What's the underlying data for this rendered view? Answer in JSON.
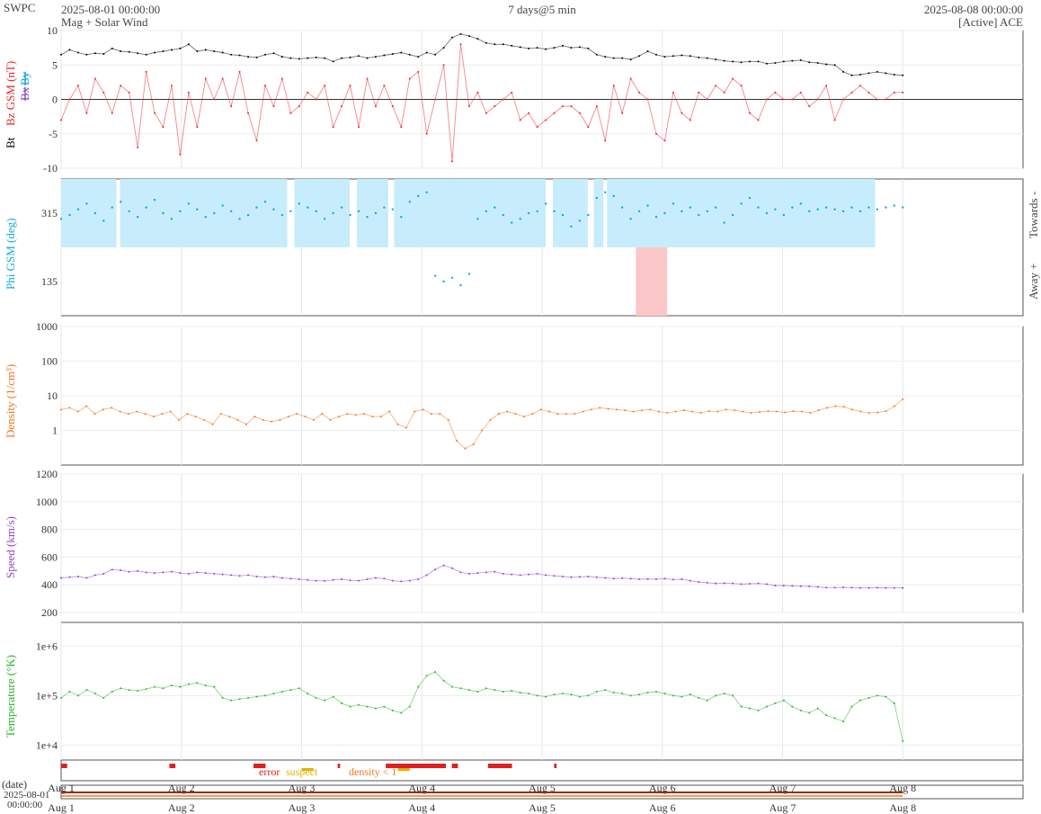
{
  "header": {
    "org": "SWPC",
    "start": "2025-08-01 00:00:00",
    "title": "Mag + Solar Wind",
    "span": "7 days@5 min",
    "end": "2025-08-08 00:00:00",
    "source": "[Active] ACE"
  },
  "colors": {
    "bt": "#000000",
    "bz": "#e8252a",
    "bx": "#7f3fbf",
    "by": "#00a0dc",
    "phi": "#0fa8df",
    "phi_toward_fill": "#c7ecfb",
    "phi_away_fill": "#fcc7c9",
    "density": "#f07820",
    "speed": "#9a3fcf",
    "temperature": "#2ab52a",
    "error": "#e02020",
    "suspect": "#e8b000",
    "density_lt1": "#f07820"
  },
  "chart_data": [
    {
      "id": "mag",
      "type": "line",
      "ylabels": {
        "bt": "Bt",
        "bz": "Bz GSM (nT)",
        "bx": "Bx",
        "by": "By"
      },
      "ylim": [
        -10,
        10
      ],
      "yticks": [
        "10",
        "5",
        "0",
        "-5",
        "-10"
      ],
      "grid": true,
      "series": [
        {
          "name": "Bt",
          "color_key": "bt",
          "values": [
            6.5,
            7.2,
            6.8,
            6.5,
            6.7,
            6.6,
            7.4,
            7.0,
            6.9,
            6.7,
            6.5,
            6.8,
            7.0,
            7.2,
            7.4,
            8.0,
            7.0,
            7.2,
            7.0,
            6.8,
            6.5,
            6.4,
            6.2,
            6.1,
            6.5,
            6.7,
            6.2,
            6.0,
            5.9,
            6.0,
            6.1,
            6.0,
            5.5,
            6.0,
            6.1,
            6.3,
            6.0,
            6.2,
            6.4,
            6.6,
            6.8,
            6.5,
            6.2,
            6.8,
            6.5,
            7.5,
            9.0,
            9.5,
            9.2,
            8.8,
            8.2,
            8.0,
            8.0,
            7.8,
            7.6,
            7.4,
            7.5,
            7.3,
            7.5,
            7.8,
            7.5,
            7.6,
            7.4,
            6.5,
            6.2,
            6.0,
            6.0,
            5.8,
            6.3,
            7.0,
            6.5,
            6.2,
            6.3,
            6.4,
            6.3,
            6.1,
            6.0,
            5.8,
            5.6,
            5.5,
            5.4,
            5.5,
            5.5,
            5.2,
            5.3,
            5.5,
            5.6,
            5.7,
            5.4,
            5.3,
            5.1,
            5.0,
            4.0,
            3.5,
            3.6,
            3.8,
            4.0,
            3.8,
            3.6,
            3.5
          ]
        },
        {
          "name": "Bz GSM",
          "color_key": "bz",
          "values": [
            -3,
            0,
            2,
            -2,
            3,
            1,
            -2,
            2,
            1,
            -7,
            4,
            -2,
            -4,
            2,
            -8,
            1,
            -4,
            3,
            0,
            3,
            -1,
            4,
            -2,
            -6,
            2,
            -1,
            3,
            -2,
            -1,
            1,
            0,
            2,
            -4,
            -1,
            2,
            -4,
            3,
            -1,
            2,
            -1,
            -4,
            3,
            4,
            -5,
            0,
            5,
            -9,
            8,
            -1,
            1,
            -2,
            -1,
            0,
            1,
            -3,
            -2,
            -4,
            -3,
            -2,
            -1,
            -1,
            -2,
            -4,
            -1,
            -6,
            2,
            -2,
            3,
            1,
            0,
            -5,
            -6,
            1,
            -2,
            -3,
            1,
            0,
            2,
            1,
            3,
            2,
            -2,
            -3,
            0,
            1,
            0,
            0,
            1,
            -1,
            0,
            2,
            -3,
            0,
            1,
            2,
            1,
            0,
            0,
            1,
            1
          ]
        },
        {
          "name": "By",
          "color_key": "by",
          "values": []
        },
        {
          "name": "Bx",
          "color_key": "bx",
          "values": []
        }
      ]
    },
    {
      "id": "phi",
      "type": "scatter",
      "ylabel": "Phi GSM (deg)",
      "right_labels": {
        "towards": "Towards -",
        "away": "Away +"
      },
      "ylim": [
        45,
        405
      ],
      "yticks": [
        "315",
        "135"
      ],
      "toward_periods": [
        [
          0.0,
          0.46
        ],
        [
          0.49,
          1.88
        ],
        [
          1.94,
          2.4
        ],
        [
          2.46,
          2.72
        ],
        [
          2.77,
          4.03
        ],
        [
          4.09,
          4.38
        ],
        [
          4.43,
          4.51
        ],
        [
          4.54,
          6.77
        ]
      ],
      "away_periods": [
        [
          4.78,
          5.04
        ]
      ],
      "series": [
        {
          "name": "Phi",
          "color_key": "phi",
          "values": [
            300,
            310,
            325,
            340,
            315,
            295,
            330,
            345,
            320,
            305,
            330,
            350,
            315,
            300,
            320,
            340,
            325,
            305,
            315,
            335,
            320,
            300,
            310,
            330,
            345,
            325,
            310,
            320,
            340,
            330,
            320,
            300,
            315,
            330,
            310,
            320,
            305,
            315,
            330,
            325,
            305,
            345,
            360,
            370,
            150,
            135,
            145,
            125,
            155,
            300,
            320,
            330,
            310,
            290,
            300,
            315,
            320,
            340,
            320,
            310,
            280,
            295,
            310,
            355,
            370,
            360,
            330,
            300,
            320,
            335,
            305,
            315,
            340,
            320,
            330,
            310,
            320,
            330,
            290,
            310,
            340,
            355,
            330,
            315,
            325,
            310,
            330,
            340,
            320,
            325,
            330,
            325,
            320,
            330,
            320,
            330,
            325,
            330,
            335,
            330
          ]
        }
      ]
    },
    {
      "id": "density",
      "type": "line",
      "yscale": "log",
      "ylabel": "Density (1/cm³)",
      "ylim": [
        0.1,
        1000
      ],
      "yticks": [
        "1000",
        "100",
        "10",
        "1"
      ],
      "series": [
        {
          "name": "Density",
          "color_key": "density",
          "values": [
            4,
            4.5,
            3.5,
            5,
            3,
            4,
            4.5,
            3.5,
            3,
            3.5,
            3,
            2.5,
            3,
            3.5,
            2,
            3,
            2.5,
            2,
            1.5,
            3,
            2.5,
            2,
            1.5,
            2.5,
            2,
            1.8,
            2,
            2.5,
            3,
            2.5,
            2,
            3,
            2,
            2.5,
            3,
            2.8,
            3,
            2.5,
            2.5,
            3.5,
            1.5,
            1.2,
            3.5,
            4,
            3,
            3,
            2,
            0.5,
            0.3,
            0.4,
            1,
            2,
            3,
            3.5,
            3,
            2.5,
            3,
            4,
            3.5,
            3,
            3,
            3,
            3.5,
            4,
            4.5,
            4.2,
            4,
            3.8,
            3.5,
            3.8,
            4,
            3.5,
            3.2,
            3.5,
            3.8,
            3.5,
            3.2,
            3.6,
            3.5,
            4,
            3.8,
            3.5,
            3.2,
            3.4,
            3.6,
            3.5,
            3.3,
            3.6,
            3.5,
            3.2,
            3.8,
            4.5,
            5,
            4.8,
            4,
            3.5,
            3.2,
            3.3,
            3.6,
            5,
            8
          ]
        }
      ]
    },
    {
      "id": "speed",
      "type": "line",
      "ylabel": "Speed (km/s)",
      "ylim": [
        200,
        1200
      ],
      "yticks": [
        "1200",
        "1000",
        "800",
        "600",
        "400",
        "200"
      ],
      "series": [
        {
          "name": "Speed",
          "color_key": "speed",
          "values": [
            450,
            455,
            460,
            450,
            470,
            480,
            510,
            505,
            495,
            500,
            490,
            485,
            490,
            495,
            485,
            480,
            490,
            485,
            480,
            475,
            470,
            465,
            470,
            460,
            455,
            460,
            450,
            445,
            440,
            435,
            430,
            428,
            435,
            440,
            432,
            430,
            440,
            450,
            445,
            430,
            425,
            430,
            440,
            470,
            510,
            540,
            520,
            490,
            480,
            485,
            490,
            495,
            480,
            475,
            470,
            475,
            480,
            470,
            465,
            460,
            455,
            458,
            460,
            455,
            450,
            445,
            448,
            445,
            440,
            442,
            440,
            445,
            438,
            440,
            430,
            420,
            415,
            410,
            412,
            410,
            405,
            408,
            410,
            405,
            395,
            395,
            392,
            390,
            388,
            385,
            380,
            380,
            382,
            380,
            378,
            378,
            379,
            378,
            377,
            378
          ]
        }
      ]
    },
    {
      "id": "temperature",
      "type": "line",
      "yscale": "log",
      "ylabel": "Temperature (°K)",
      "ylim": [
        5000,
        3000000
      ],
      "yticks": [
        "1e+6",
        "1e+5",
        "1e+4"
      ],
      "series": [
        {
          "name": "Temperature",
          "color_key": "temperature",
          "values": [
            90000,
            120000,
            100000,
            130000,
            110000,
            90000,
            120000,
            140000,
            130000,
            125000,
            135000,
            150000,
            140000,
            160000,
            150000,
            170000,
            180000,
            160000,
            150000,
            90000,
            80000,
            85000,
            90000,
            95000,
            100000,
            110000,
            120000,
            130000,
            140000,
            110000,
            90000,
            80000,
            95000,
            70000,
            60000,
            65000,
            60000,
            55000,
            60000,
            50000,
            45000,
            60000,
            150000,
            250000,
            300000,
            200000,
            150000,
            140000,
            130000,
            120000,
            140000,
            130000,
            120000,
            125000,
            115000,
            110000,
            100000,
            95000,
            105000,
            110000,
            105000,
            95000,
            100000,
            120000,
            130000,
            115000,
            110000,
            100000,
            105000,
            115000,
            120000,
            110000,
            100000,
            95000,
            105000,
            90000,
            80000,
            100000,
            110000,
            100000,
            60000,
            55000,
            50000,
            60000,
            70000,
            80000,
            60000,
            50000,
            45000,
            55000,
            40000,
            35000,
            30000,
            60000,
            80000,
            90000,
            100000,
            95000,
            70000,
            12000
          ]
        }
      ]
    }
  ],
  "flags": {
    "error": "error",
    "suspect": "suspect",
    "density": "density < 1"
  },
  "xaxis": {
    "date_label": "(date)",
    "start_label_date": "2025-08-01",
    "start_label_time": "00:00:00",
    "ticks": [
      "Aug 1",
      "Aug 2",
      "Aug 3",
      "Aug 4",
      "Aug 5",
      "Aug 6",
      "Aug 7",
      "Aug 8"
    ],
    "range_days": [
      0,
      7
    ]
  }
}
